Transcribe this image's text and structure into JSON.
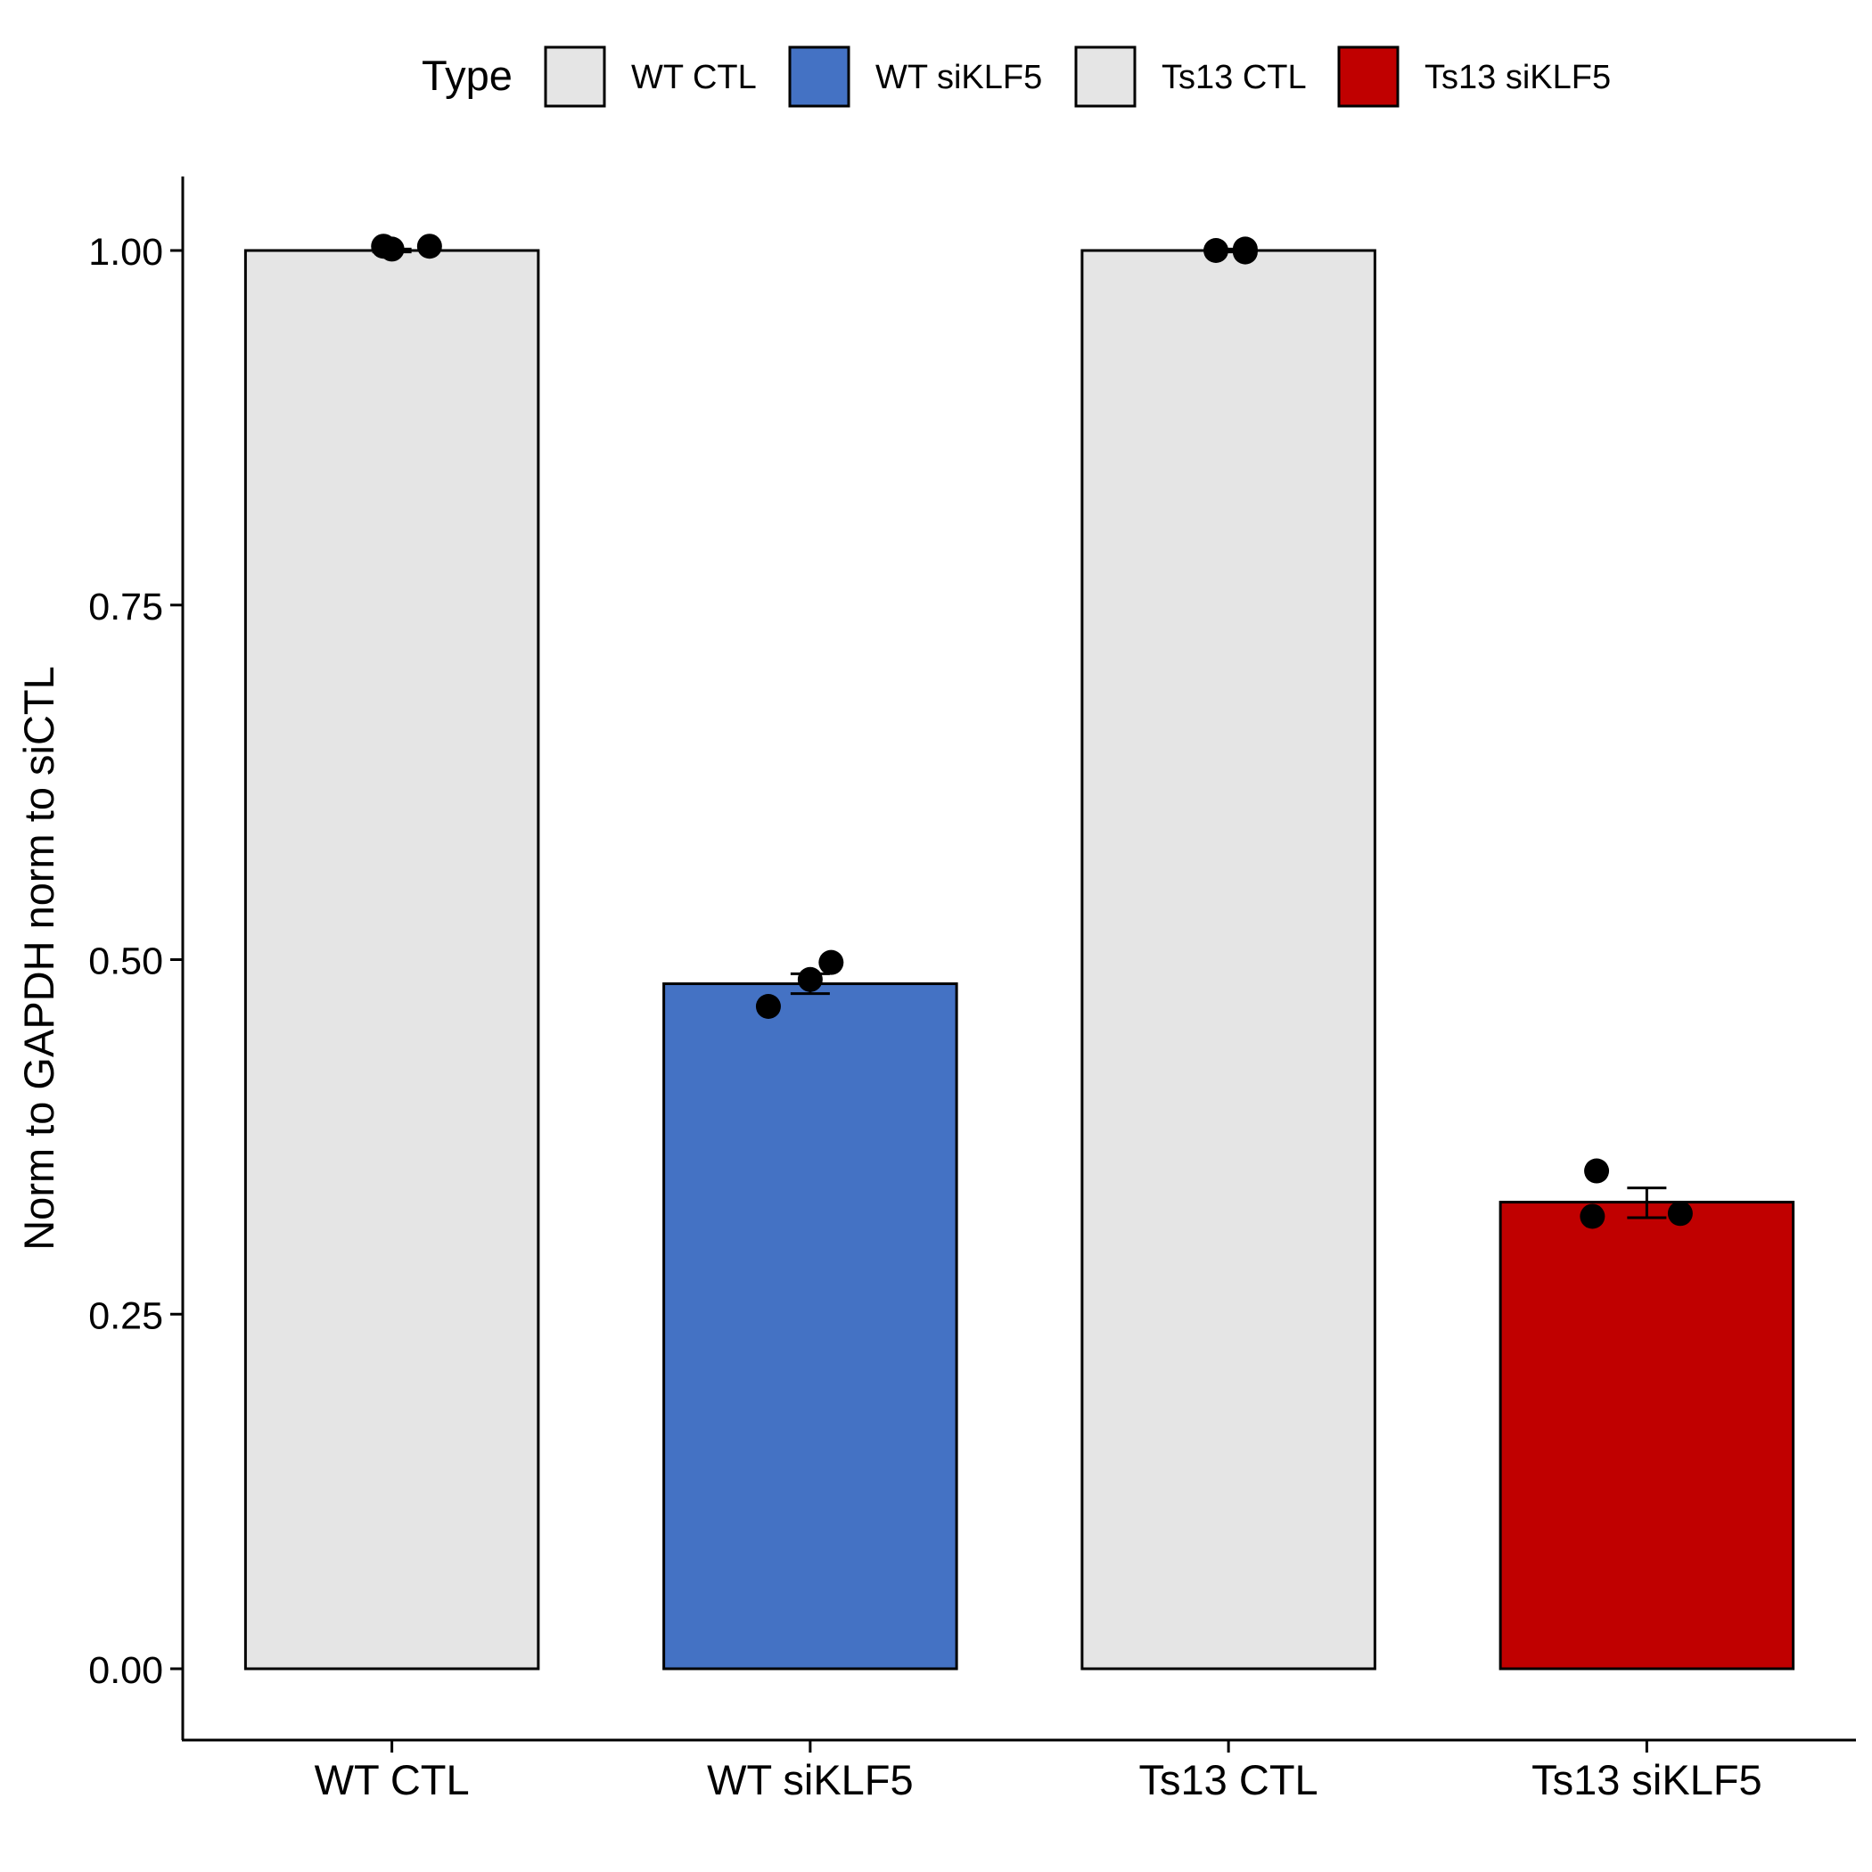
{
  "chart_data": {
    "type": "bar",
    "title": "",
    "xlabel": "",
    "ylabel": "Norm to GAPDH norm to siCTL",
    "ylim": [
      -0.05,
      1.055
    ],
    "yticks": [
      0.0,
      0.25,
      0.5,
      0.75,
      1.0
    ],
    "ytick_labels": [
      "0.00",
      "0.25",
      "0.50",
      "0.75",
      "1.00"
    ],
    "grid": false,
    "legend": {
      "title": "Type",
      "position": "top",
      "entries": [
        {
          "label": "WT CTL",
          "color": "#E5E5E5"
        },
        {
          "label": "WT siKLF5",
          "color": "#4472C4"
        },
        {
          "label": "Ts13 CTL",
          "color": "#E5E5E5"
        },
        {
          "label": "Ts13 siKLF5",
          "color": "#C00000"
        }
      ]
    },
    "categories": [
      "WT CTL",
      "WT siKLF5",
      "Ts13 CTL",
      "Ts13 siKLF5"
    ],
    "values": [
      1.0,
      0.483,
      1.0,
      0.329
    ],
    "colors": [
      "#E5E5E5",
      "#4472C4",
      "#E5E5E5",
      "#C00000"
    ],
    "error_bars": [
      {
        "low": 0.999,
        "high": 1.001
      },
      {
        "low": 0.476,
        "high": 0.49
      },
      {
        "low": 0.999,
        "high": 1.001
      },
      {
        "low": 0.318,
        "high": 0.339
      }
    ],
    "points": [
      [
        {
          "dx": -0.02,
          "y": 1.003
        },
        {
          "dx": 0.0,
          "y": 1.001
        },
        {
          "dx": 0.09,
          "y": 1.003
        }
      ],
      [
        {
          "dx": -0.1,
          "y": 0.467
        },
        {
          "dx": 0.0,
          "y": 0.486
        },
        {
          "dx": 0.05,
          "y": 0.498
        }
      ],
      [
        {
          "dx": -0.03,
          "y": 1.0
        },
        {
          "dx": 0.04,
          "y": 1.001
        },
        {
          "dx": 0.04,
          "y": 0.999
        }
      ],
      [
        {
          "dx": -0.13,
          "y": 0.319
        },
        {
          "dx": -0.12,
          "y": 0.351
        },
        {
          "dx": 0.08,
          "y": 0.321
        }
      ]
    ]
  }
}
